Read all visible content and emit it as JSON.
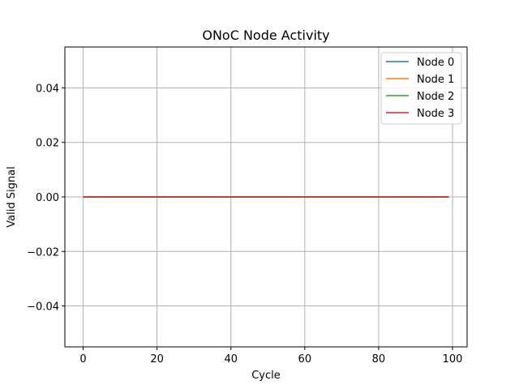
{
  "chart_data": {
    "type": "line",
    "title": "ONoC Node Activity",
    "xlabel": "Cycle",
    "ylabel": "Valid Signal",
    "xlim": [
      -4.95,
      103.95
    ],
    "ylim": [
      -0.055,
      0.055
    ],
    "xticks": [
      0,
      20,
      40,
      60,
      80,
      100
    ],
    "xtick_labels": [
      "0",
      "20",
      "40",
      "60",
      "80",
      "100"
    ],
    "yticks": [
      -0.04,
      -0.02,
      0.0,
      0.02,
      0.04
    ],
    "ytick_labels": [
      "−0.04",
      "−0.02",
      "0.00",
      "0.02",
      "0.04"
    ],
    "grid": true,
    "legend_position": "top-right",
    "x": [
      0,
      99
    ],
    "series": [
      {
        "name": "Node 0",
        "color": "#1f77b4",
        "values": [
          0,
          0
        ]
      },
      {
        "name": "Node 1",
        "color": "#ff7f0e",
        "values": [
          0,
          0
        ]
      },
      {
        "name": "Node 2",
        "color": "#2ca02c",
        "values": [
          0,
          0
        ]
      },
      {
        "name": "Node 3",
        "color": "#d62728",
        "values": [
          0,
          0
        ]
      }
    ]
  }
}
